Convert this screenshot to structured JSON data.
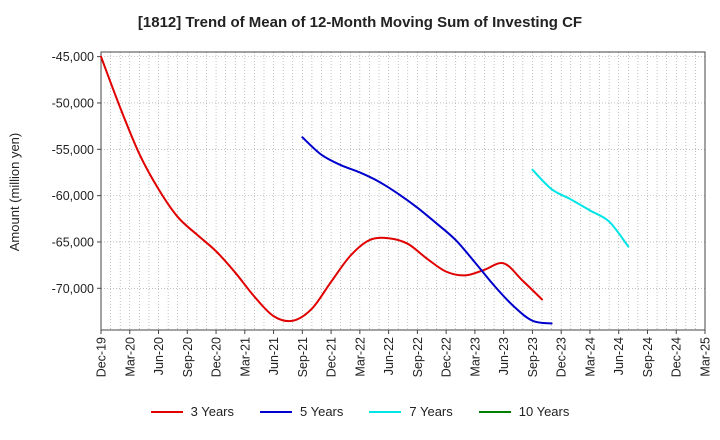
{
  "chart_data": {
    "type": "line",
    "title": "[1812]  Trend of Mean of 12-Month Moving Sum of Investing CF",
    "ylabel": "Amount (million yen)",
    "xlabel": "",
    "ylim": [
      -74500,
      -44500
    ],
    "yticks": [
      -45000,
      -50000,
      -55000,
      -60000,
      -65000,
      -70000
    ],
    "ytick_labels": [
      "-45,000",
      "-50,000",
      "-55,000",
      "-60,000",
      "-65,000",
      "-70,000"
    ],
    "x_start": "Dec-19",
    "x_count": 64,
    "xtick_labels": [
      "Dec-19",
      "Mar-20",
      "Jun-20",
      "Sep-20",
      "Dec-20",
      "Mar-21",
      "Jun-21",
      "Sep-21",
      "Dec-21",
      "Mar-22",
      "Jun-22",
      "Sep-22",
      "Dec-22",
      "Mar-23",
      "Jun-23",
      "Sep-23",
      "Dec-23",
      "Mar-24",
      "Jun-24",
      "Sep-24",
      "Dec-24",
      "Mar-25"
    ],
    "series": [
      {
        "name": "3 Years",
        "color": "#e00000",
        "start_index": 0,
        "values": [
          -45000,
          -50500,
          -55500,
          -59300,
          -62300,
          -64200,
          -66000,
          -68300,
          -70900,
          -73000,
          -73500,
          -72200,
          -69300,
          -66500,
          -64800,
          -64600,
          -65200,
          -66800,
          -68200,
          -68600,
          -68000,
          -67300,
          -69200,
          -71200
        ]
      },
      {
        "name": "5 Years",
        "color": "#0000cc",
        "start_index": 21,
        "values": [
          -53700,
          -55600,
          -56700,
          -57500,
          -58500,
          -59800,
          -61300,
          -63000,
          -64800,
          -67200,
          -69700,
          -71900,
          -73500,
          -73800
        ]
      },
      {
        "name": "7 Years",
        "color": "#00e5e5",
        "start_index": 45,
        "values": [
          -57200,
          -59300,
          -60400,
          -61600,
          -62800,
          -65500
        ]
      },
      {
        "name": "10 Years",
        "color": "#008000",
        "start_index": 0,
        "values": []
      }
    ]
  }
}
